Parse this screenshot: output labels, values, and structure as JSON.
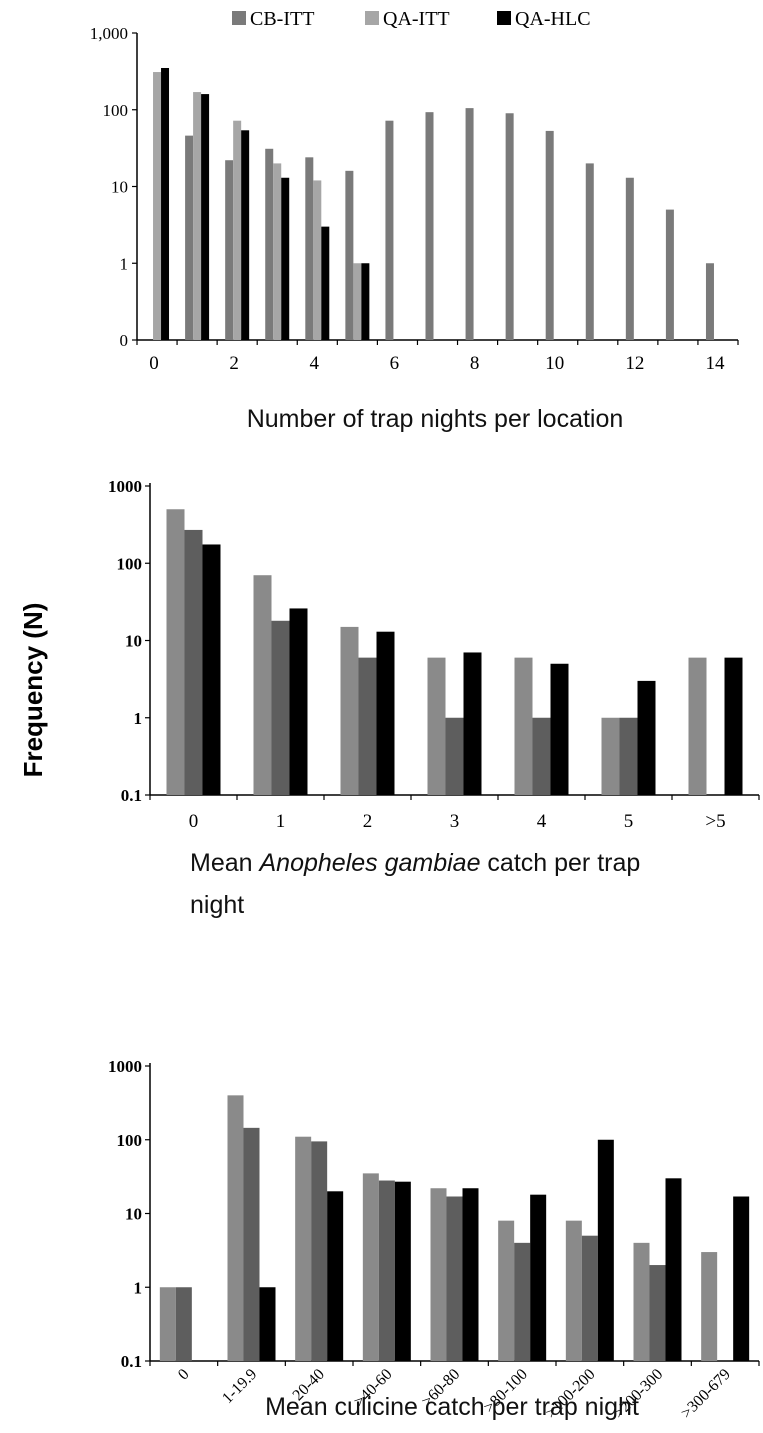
{
  "y_axis_label": "Frequency (N)",
  "chart_data": [
    {
      "type": "bar",
      "scale": "log",
      "zero_tick": "0",
      "categories": [
        "0",
        "1",
        "2",
        "3",
        "4",
        "5",
        "6",
        "7",
        "8",
        "9",
        "10",
        "11",
        "12",
        "13",
        "14"
      ],
      "x_tick_labels": [
        "0",
        "2",
        "4",
        "6",
        "8",
        "10",
        "12",
        "14"
      ],
      "y_tick_labels": [
        "0",
        "1",
        "10",
        "100",
        "1,000"
      ],
      "series": [
        {
          "name": "CB-ITT",
          "color": "#7a7a7a",
          "values": [
            null,
            46,
            22,
            31,
            24,
            16,
            72,
            93,
            105,
            90,
            53,
            20,
            13,
            5,
            1
          ]
        },
        {
          "name": "QA-ITT",
          "color": "#a6a6a6",
          "values": [
            310,
            170,
            72,
            20,
            12,
            1,
            null,
            null,
            null,
            null,
            null,
            null,
            null,
            null,
            null
          ]
        },
        {
          "name": "QA-HLC",
          "color": "#000000",
          "values": [
            350,
            160,
            54,
            13,
            3,
            1,
            null,
            null,
            null,
            null,
            null,
            null,
            null,
            null,
            null
          ]
        }
      ],
      "xlabel": "Number of trap nights per location",
      "legend_position": "top"
    },
    {
      "type": "bar",
      "scale": "log",
      "categories": [
        "0",
        "1",
        "2",
        "3",
        "4",
        "5",
        ">5"
      ],
      "y_tick_labels": [
        "0.1",
        "1",
        "10",
        "100",
        "1000"
      ],
      "series": [
        {
          "color": "#8a8a8a",
          "values": [
            500,
            70,
            15,
            6,
            6,
            1,
            6
          ]
        },
        {
          "color": "#5e5e5e",
          "values": [
            270,
            18,
            6,
            1,
            1,
            1,
            null
          ]
        },
        {
          "color": "#000000",
          "values": [
            175,
            26,
            13,
            7,
            5,
            3,
            6
          ]
        }
      ],
      "xlabel_parts": [
        "Mean ",
        "Anopheles gambiae",
        " catch per trap",
        "night"
      ]
    },
    {
      "type": "bar",
      "scale": "log",
      "categories": [
        "0",
        "1-19.9",
        "20-40",
        ">40-60",
        ">60-80",
        ">80-100",
        ">100-200",
        ">200-300",
        ">300-679"
      ],
      "y_tick_labels": [
        "0.1",
        "1",
        "10",
        "100",
        "1000"
      ],
      "series": [
        {
          "color": "#8a8a8a",
          "values": [
            1,
            400,
            110,
            35,
            22,
            8,
            8,
            4,
            3
          ]
        },
        {
          "color": "#5e5e5e",
          "values": [
            1,
            145,
            95,
            28,
            17,
            4,
            5,
            2,
            null
          ]
        },
        {
          "color": "#000000",
          "values": [
            null,
            1,
            20,
            27,
            22,
            18,
            100,
            30,
            17
          ]
        }
      ],
      "xlabel": "Mean culicine catch per trap night"
    }
  ]
}
